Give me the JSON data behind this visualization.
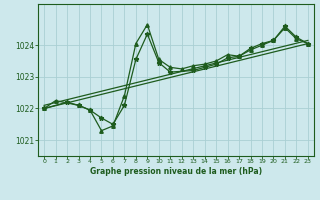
{
  "title": "Graphe pression niveau de la mer (hPa)",
  "bg_color": "#cde8ec",
  "line_color": "#1e5c1e",
  "grid_color": "#aacfd4",
  "xlim": [
    -0.5,
    23.5
  ],
  "ylim": [
    1020.5,
    1025.3
  ],
  "yticks": [
    1021,
    1022,
    1023,
    1024
  ],
  "xticks": [
    0,
    1,
    2,
    3,
    4,
    5,
    6,
    7,
    8,
    9,
    10,
    11,
    12,
    13,
    14,
    15,
    16,
    17,
    18,
    19,
    20,
    21,
    22,
    23
  ],
  "line1_x": [
    0,
    1,
    3,
    4,
    5,
    6,
    7,
    8,
    9,
    10,
    11,
    12,
    13,
    14,
    15,
    16,
    17,
    18,
    19,
    20,
    21,
    22,
    23
  ],
  "line1_y": [
    1022.0,
    1022.25,
    1022.1,
    1021.95,
    1021.3,
    1021.45,
    1022.4,
    1024.05,
    1024.65,
    1023.55,
    1023.3,
    1023.25,
    1023.35,
    1023.4,
    1023.5,
    1023.7,
    1023.65,
    1023.85,
    1024.0,
    1024.15,
    1024.55,
    1024.2,
    1024.05
  ],
  "line2_x": [
    0,
    2,
    3,
    4,
    5,
    6,
    7,
    8,
    9,
    10,
    11,
    13,
    14,
    15,
    16,
    17,
    18,
    19,
    20,
    21,
    22,
    23
  ],
  "line2_y": [
    1022.0,
    1022.2,
    1022.1,
    1021.95,
    1021.7,
    1021.5,
    1022.1,
    1023.55,
    1024.35,
    1023.45,
    1023.15,
    1023.2,
    1023.3,
    1023.4,
    1023.6,
    1023.65,
    1023.9,
    1024.05,
    1024.15,
    1024.6,
    1024.25,
    1024.05
  ],
  "line3_x": [
    0,
    23
  ],
  "line3_y": [
    1022.0,
    1024.05
  ]
}
